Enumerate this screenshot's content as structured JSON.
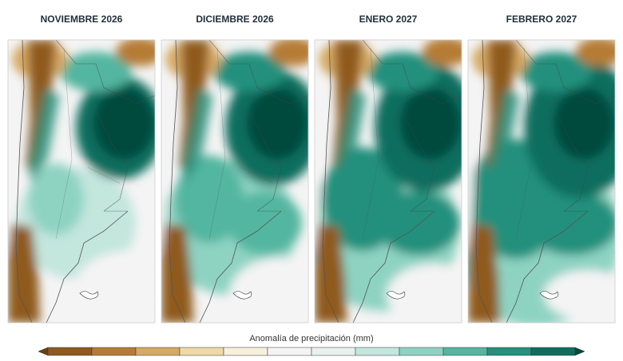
{
  "panels": [
    {
      "title": "NOVIEMBRE 2026"
    },
    {
      "title": "DICIEMBRE 2026"
    },
    {
      "title": "ENERO 2027"
    },
    {
      "title": "FEBRERO 2027"
    }
  ],
  "colorbar": {
    "label": "Anomalía de precipitación (mm)",
    "colors": [
      "#6b3f0e",
      "#8f5a1f",
      "#b57b35",
      "#d6a964",
      "#efd9a6",
      "#f7f0dd",
      "#f4f4f4",
      "#e9f1ef",
      "#c3e6dd",
      "#8ed3c2",
      "#53b6a0",
      "#24907d",
      "#0e6e5e",
      "#064a3e"
    ]
  }
}
